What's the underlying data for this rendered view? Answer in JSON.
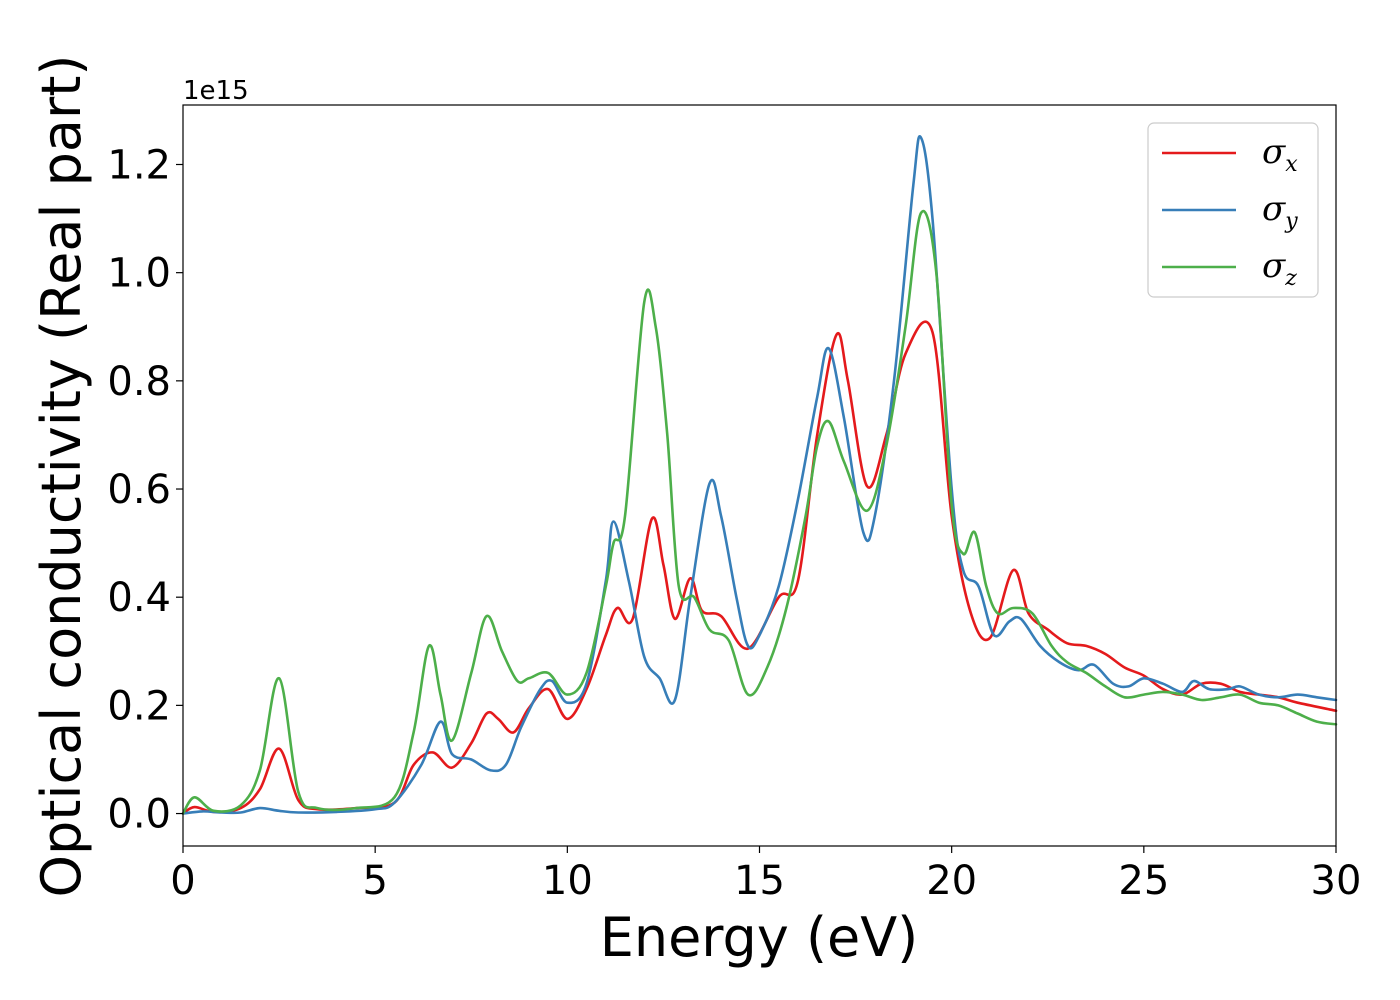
{
  "chart_data": {
    "type": "line",
    "xlabel": "Energy (eV)",
    "ylabel": "Optical conductivity (Real part)",
    "offset_text": "1e15",
    "xlim": [
      0,
      30
    ],
    "ylim": [
      -0.06,
      1.31
    ],
    "xticks": [
      0,
      5,
      10,
      15,
      20,
      25,
      30
    ],
    "xtick_labels": [
      "0",
      "5",
      "10",
      "15",
      "20",
      "25",
      "30"
    ],
    "yticks": [
      0.0,
      0.2,
      0.4,
      0.6,
      0.8,
      1.0,
      1.2
    ],
    "ytick_labels": [
      "0.0",
      "0.2",
      "0.4",
      "0.6",
      "0.8",
      "1.0",
      "1.2"
    ],
    "grid": false,
    "legend_position": "top-right",
    "series": [
      {
        "name": "σx",
        "name_base": "σ",
        "name_sub": "x",
        "color": "#e41a1c",
        "points": [
          [
            0,
            0
          ],
          [
            0.3,
            0.012
          ],
          [
            0.8,
            0.003
          ],
          [
            1.5,
            0.01
          ],
          [
            2.0,
            0.045
          ],
          [
            2.5,
            0.12
          ],
          [
            3.0,
            0.025
          ],
          [
            3.5,
            0.008
          ],
          [
            4.5,
            0.01
          ],
          [
            5.5,
            0.02
          ],
          [
            6.0,
            0.09
          ],
          [
            6.5,
            0.113
          ],
          [
            7.0,
            0.085
          ],
          [
            7.5,
            0.13
          ],
          [
            7.9,
            0.185
          ],
          [
            8.2,
            0.175
          ],
          [
            8.6,
            0.15
          ],
          [
            9.0,
            0.195
          ],
          [
            9.5,
            0.23
          ],
          [
            10.0,
            0.175
          ],
          [
            10.5,
            0.23
          ],
          [
            11.0,
            0.33
          ],
          [
            11.3,
            0.38
          ],
          [
            11.7,
            0.36
          ],
          [
            12.2,
            0.545
          ],
          [
            12.5,
            0.46
          ],
          [
            12.8,
            0.36
          ],
          [
            13.2,
            0.435
          ],
          [
            13.5,
            0.375
          ],
          [
            14.0,
            0.365
          ],
          [
            14.7,
            0.305
          ],
          [
            15.5,
            0.4
          ],
          [
            16.0,
            0.43
          ],
          [
            16.5,
            0.7
          ],
          [
            17.0,
            0.885
          ],
          [
            17.3,
            0.8
          ],
          [
            17.8,
            0.605
          ],
          [
            18.3,
            0.7
          ],
          [
            18.8,
            0.85
          ],
          [
            19.5,
            0.89
          ],
          [
            20.0,
            0.55
          ],
          [
            20.5,
            0.37
          ],
          [
            21.0,
            0.325
          ],
          [
            21.6,
            0.45
          ],
          [
            22.0,
            0.37
          ],
          [
            22.5,
            0.34
          ],
          [
            23.0,
            0.315
          ],
          [
            23.5,
            0.31
          ],
          [
            24.0,
            0.295
          ],
          [
            24.5,
            0.27
          ],
          [
            25.0,
            0.255
          ],
          [
            25.5,
            0.23
          ],
          [
            26.0,
            0.22
          ],
          [
            26.5,
            0.24
          ],
          [
            27.0,
            0.24
          ],
          [
            27.5,
            0.225
          ],
          [
            28.0,
            0.22
          ],
          [
            28.5,
            0.215
          ],
          [
            29.0,
            0.205
          ],
          [
            30.0,
            0.19
          ]
        ]
      },
      {
        "name": "σy",
        "name_base": "σ",
        "name_sub": "y",
        "color": "#377eb8",
        "points": [
          [
            0,
            0
          ],
          [
            0.5,
            0.004
          ],
          [
            1.0,
            0.002
          ],
          [
            1.5,
            0.002
          ],
          [
            2.0,
            0.01
          ],
          [
            2.5,
            0.005
          ],
          [
            3.0,
            0.002
          ],
          [
            4.0,
            0.003
          ],
          [
            5.0,
            0.008
          ],
          [
            5.5,
            0.02
          ],
          [
            6.2,
            0.09
          ],
          [
            6.7,
            0.17
          ],
          [
            7.0,
            0.11
          ],
          [
            7.5,
            0.1
          ],
          [
            8.0,
            0.08
          ],
          [
            8.4,
            0.09
          ],
          [
            8.8,
            0.16
          ],
          [
            9.3,
            0.23
          ],
          [
            9.6,
            0.245
          ],
          [
            10.0,
            0.205
          ],
          [
            10.5,
            0.24
          ],
          [
            11.0,
            0.43
          ],
          [
            11.2,
            0.54
          ],
          [
            11.6,
            0.43
          ],
          [
            12.0,
            0.29
          ],
          [
            12.4,
            0.25
          ],
          [
            12.8,
            0.21
          ],
          [
            13.2,
            0.4
          ],
          [
            13.7,
            0.61
          ],
          [
            14.0,
            0.55
          ],
          [
            14.4,
            0.4
          ],
          [
            14.7,
            0.31
          ],
          [
            15.0,
            0.33
          ],
          [
            15.5,
            0.42
          ],
          [
            16.0,
            0.58
          ],
          [
            16.5,
            0.77
          ],
          [
            16.8,
            0.86
          ],
          [
            17.2,
            0.73
          ],
          [
            17.7,
            0.52
          ],
          [
            18.0,
            0.55
          ],
          [
            18.5,
            0.8
          ],
          [
            19.0,
            1.16
          ],
          [
            19.2,
            1.25
          ],
          [
            19.5,
            1.1
          ],
          [
            20.0,
            0.6
          ],
          [
            20.3,
            0.45
          ],
          [
            20.7,
            0.42
          ],
          [
            21.1,
            0.33
          ],
          [
            21.5,
            0.355
          ],
          [
            21.8,
            0.36
          ],
          [
            22.3,
            0.31
          ],
          [
            22.8,
            0.28
          ],
          [
            23.3,
            0.265
          ],
          [
            23.7,
            0.275
          ],
          [
            24.2,
            0.24
          ],
          [
            24.6,
            0.235
          ],
          [
            25.0,
            0.25
          ],
          [
            25.5,
            0.24
          ],
          [
            26.0,
            0.225
          ],
          [
            26.3,
            0.245
          ],
          [
            26.7,
            0.23
          ],
          [
            27.2,
            0.23
          ],
          [
            27.5,
            0.235
          ],
          [
            28.0,
            0.22
          ],
          [
            28.5,
            0.215
          ],
          [
            29.0,
            0.22
          ],
          [
            29.5,
            0.215
          ],
          [
            30.0,
            0.21
          ]
        ]
      },
      {
        "name": "σz",
        "name_base": "σ",
        "name_sub": "z",
        "color": "#4daf4a",
        "points": [
          [
            0,
            0
          ],
          [
            0.3,
            0.03
          ],
          [
            0.8,
            0.005
          ],
          [
            1.5,
            0.015
          ],
          [
            2.0,
            0.08
          ],
          [
            2.5,
            0.25
          ],
          [
            3.0,
            0.04
          ],
          [
            3.5,
            0.01
          ],
          [
            4.5,
            0.01
          ],
          [
            5.5,
            0.03
          ],
          [
            6.0,
            0.15
          ],
          [
            6.4,
            0.31
          ],
          [
            6.7,
            0.22
          ],
          [
            7.0,
            0.135
          ],
          [
            7.5,
            0.26
          ],
          [
            7.9,
            0.365
          ],
          [
            8.3,
            0.3
          ],
          [
            8.7,
            0.245
          ],
          [
            9.0,
            0.25
          ],
          [
            9.5,
            0.26
          ],
          [
            10.0,
            0.22
          ],
          [
            10.5,
            0.26
          ],
          [
            11.0,
            0.42
          ],
          [
            11.2,
            0.5
          ],
          [
            11.5,
            0.55
          ],
          [
            12.0,
            0.945
          ],
          [
            12.3,
            0.9
          ],
          [
            12.6,
            0.7
          ],
          [
            12.9,
            0.42
          ],
          [
            13.3,
            0.4
          ],
          [
            13.7,
            0.34
          ],
          [
            14.2,
            0.32
          ],
          [
            14.7,
            0.22
          ],
          [
            15.2,
            0.27
          ],
          [
            15.7,
            0.38
          ],
          [
            16.2,
            0.55
          ],
          [
            16.5,
            0.68
          ],
          [
            16.8,
            0.725
          ],
          [
            17.2,
            0.65
          ],
          [
            17.8,
            0.56
          ],
          [
            18.3,
            0.68
          ],
          [
            18.8,
            0.9
          ],
          [
            19.2,
            1.11
          ],
          [
            19.6,
            1.0
          ],
          [
            20.0,
            0.57
          ],
          [
            20.3,
            0.48
          ],
          [
            20.6,
            0.52
          ],
          [
            20.9,
            0.42
          ],
          [
            21.2,
            0.37
          ],
          [
            21.6,
            0.38
          ],
          [
            22.1,
            0.37
          ],
          [
            22.6,
            0.31
          ],
          [
            23.0,
            0.28
          ],
          [
            23.5,
            0.26
          ],
          [
            24.0,
            0.235
          ],
          [
            24.5,
            0.215
          ],
          [
            25.0,
            0.22
          ],
          [
            25.5,
            0.225
          ],
          [
            26.0,
            0.22
          ],
          [
            26.5,
            0.21
          ],
          [
            27.0,
            0.215
          ],
          [
            27.5,
            0.22
          ],
          [
            28.0,
            0.205
          ],
          [
            28.5,
            0.2
          ],
          [
            29.0,
            0.185
          ],
          [
            29.5,
            0.17
          ],
          [
            30.0,
            0.165
          ]
        ]
      }
    ]
  }
}
